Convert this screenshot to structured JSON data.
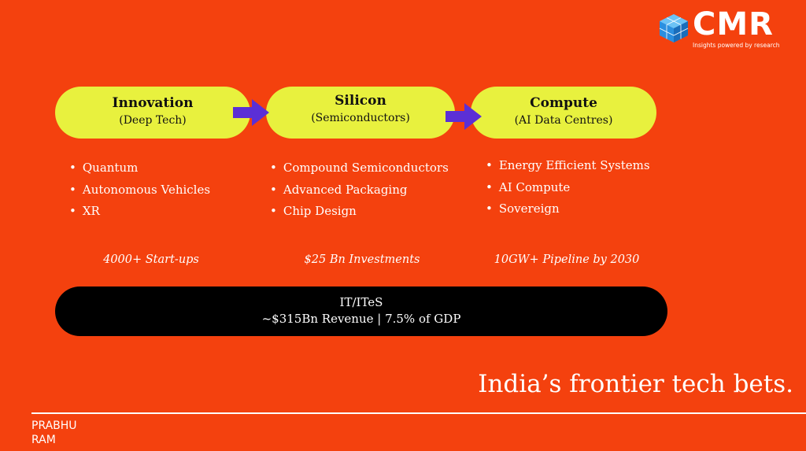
{
  "logo": {
    "name": "CMR",
    "tagline": "Insights powered by research"
  },
  "pillars": [
    {
      "title": "Innovation",
      "subtitle": "(Deep Tech)",
      "items": [
        "Quantum",
        "Autonomous Vehicles",
        "XR"
      ],
      "metric": "4000+ Start-ups"
    },
    {
      "title": "Silicon",
      "subtitle": "(Semiconductors)",
      "items": [
        "Compound Semiconductors",
        "Advanced Packaging",
        "Chip Design"
      ],
      "metric": "$25 Bn Investments"
    },
    {
      "title": "Compute",
      "subtitle": "(AI Data Centres)",
      "items": [
        "Energy Efficient Systems",
        "AI Compute",
        "Sovereign"
      ],
      "metric": "10GW+ Pipeline by 2030"
    }
  ],
  "foundation": {
    "title": "IT/ITeS",
    "subtitle": "~$315Bn Revenue | 7.5% of GDP"
  },
  "headline": "India’s frontier tech bets.",
  "author": [
    "PRABHU",
    "RAM"
  ]
}
